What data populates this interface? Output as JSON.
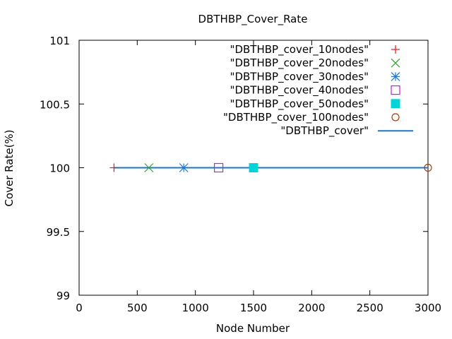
{
  "chart_data": {
    "type": "scatter",
    "title": "DBTHBP_Cover_Rate",
    "xlabel": "Node Number",
    "ylabel": "Cover Rate(%)",
    "xlim": [
      0,
      3000
    ],
    "ylim": [
      99,
      101
    ],
    "xticks": [
      0,
      500,
      1000,
      1500,
      2000,
      2500,
      3000
    ],
    "yticks": [
      99,
      99.5,
      100,
      100.5,
      101
    ],
    "xtick_labels": [
      "0",
      "500",
      "1000",
      "1500",
      "2000",
      "2500",
      "3000"
    ],
    "ytick_labels": [
      "99",
      "99.5",
      "100",
      "100.5",
      "101"
    ],
    "grid": false,
    "legend_position": "top-right",
    "series": [
      {
        "name": "\"DBTHBP_cover_10nodes\"",
        "kind": "point",
        "marker": "plus",
        "color": "#e41a1c",
        "x": [
          300
        ],
        "y": [
          100
        ]
      },
      {
        "name": "\"DBTHBP_cover_20nodes\"",
        "kind": "point",
        "marker": "cross",
        "color": "#2ca02c",
        "x": [
          600
        ],
        "y": [
          100
        ]
      },
      {
        "name": "\"DBTHBP_cover_30nodes\"",
        "kind": "point",
        "marker": "star",
        "color": "#1f77d4",
        "x": [
          900
        ],
        "y": [
          100
        ]
      },
      {
        "name": "\"DBTHBP_cover_40nodes\"",
        "kind": "point",
        "marker": "square-open",
        "color": "#c020e0",
        "x": [
          1200
        ],
        "y": [
          100
        ]
      },
      {
        "name": "\"DBTHBP_cover_50nodes\"",
        "kind": "point",
        "marker": "square-filled",
        "color": "#00d4d8",
        "x": [
          1500
        ],
        "y": [
          100
        ]
      },
      {
        "name": "\"DBTHBP_cover_100nodes\"",
        "kind": "point",
        "marker": "circle-open",
        "color": "#a0420a",
        "x": [
          3000
        ],
        "y": [
          100
        ]
      },
      {
        "name": "\"DBTHBP_cover\"",
        "kind": "line",
        "marker": "none",
        "color": "#1a78c8",
        "x": [
          300,
          600,
          900,
          1200,
          1500,
          3000
        ],
        "y": [
          100,
          100,
          100,
          100,
          100,
          100
        ]
      }
    ]
  }
}
